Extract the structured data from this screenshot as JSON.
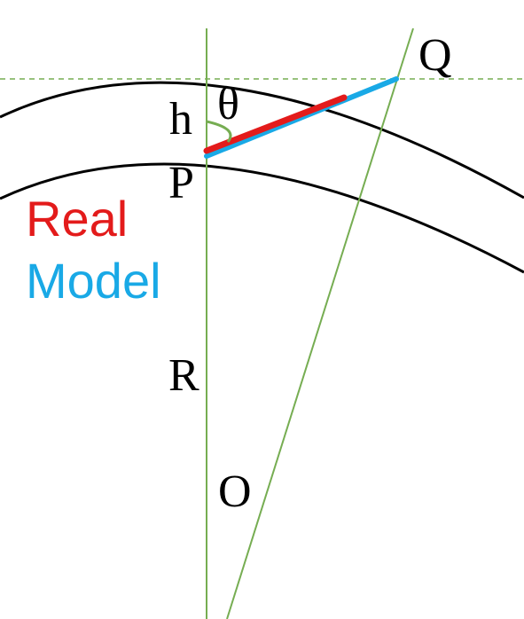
{
  "labels": {
    "h": "h",
    "theta": "θ",
    "p": "P",
    "q": "Q",
    "r": "R",
    "o": "O"
  },
  "legend": {
    "real": "Real",
    "model": "Model"
  },
  "colors": {
    "real": "#e31b1b",
    "model": "#19a9e6",
    "construction": "#76ad52",
    "outline": "#000000",
    "background": "#ffffff"
  }
}
